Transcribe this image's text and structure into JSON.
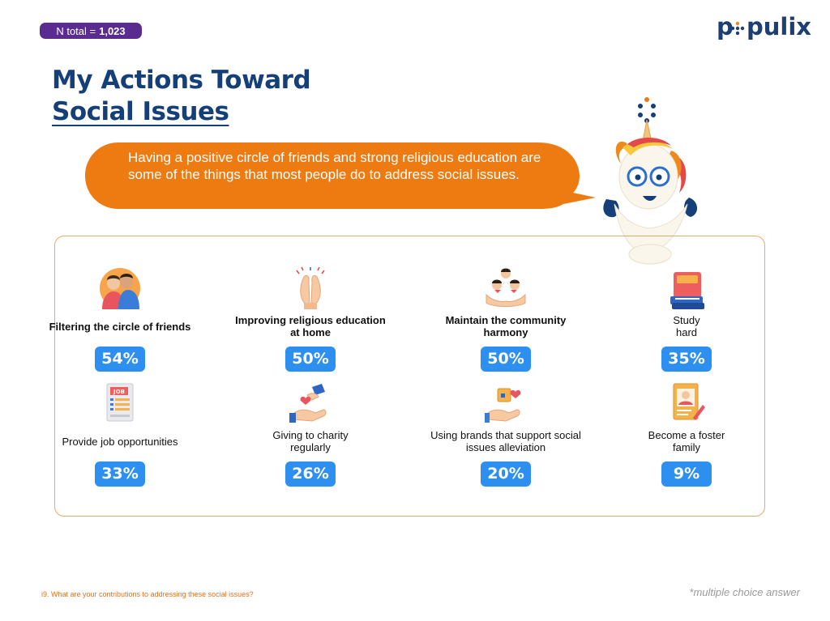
{
  "badge": {
    "prefix": "N total =",
    "value": "1,023"
  },
  "logo": {
    "text": "populix"
  },
  "title": {
    "line1": "My Actions Toward",
    "line2": "Social Issues"
  },
  "bubble": {
    "text": "Having a positive circle of friends and strong religious education are some of the things that most people do to address social issues."
  },
  "items": [
    {
      "label": "Filtering the circle of friends",
      "value": "54%",
      "icon": "friends-icon",
      "bold": true
    },
    {
      "label": "Improving religious education at home",
      "value": "50%",
      "icon": "praying-hands-icon",
      "bold": true
    },
    {
      "label": "Maintain the community harmony",
      "value": "50%",
      "icon": "community-icon",
      "bold": true
    },
    {
      "label": "Study hard",
      "value": "35%",
      "icon": "books-icon",
      "bold": false
    },
    {
      "label": "Provide job opportunities",
      "value": "33%",
      "icon": "job-listing-icon",
      "bold": false
    },
    {
      "label": "Giving to charity regularly",
      "value": "26%",
      "icon": "charity-icon",
      "bold": false
    },
    {
      "label": "Using brands that support social issues alleviation",
      "value": "20%",
      "icon": "brand-support-icon",
      "bold": false
    },
    {
      "label": "Become a foster family",
      "value": "9%",
      "icon": "foster-family-icon",
      "bold": false
    }
  ],
  "footer": {
    "question": "i9. What are your contributions to addressing these social issues?",
    "note": "*multiple choice answer"
  },
  "colors": {
    "primary": "#153f78",
    "accent": "#ee7a12",
    "badge": "#5b2c8f",
    "pill": "#2d8ff0",
    "border": "#f0a664"
  }
}
